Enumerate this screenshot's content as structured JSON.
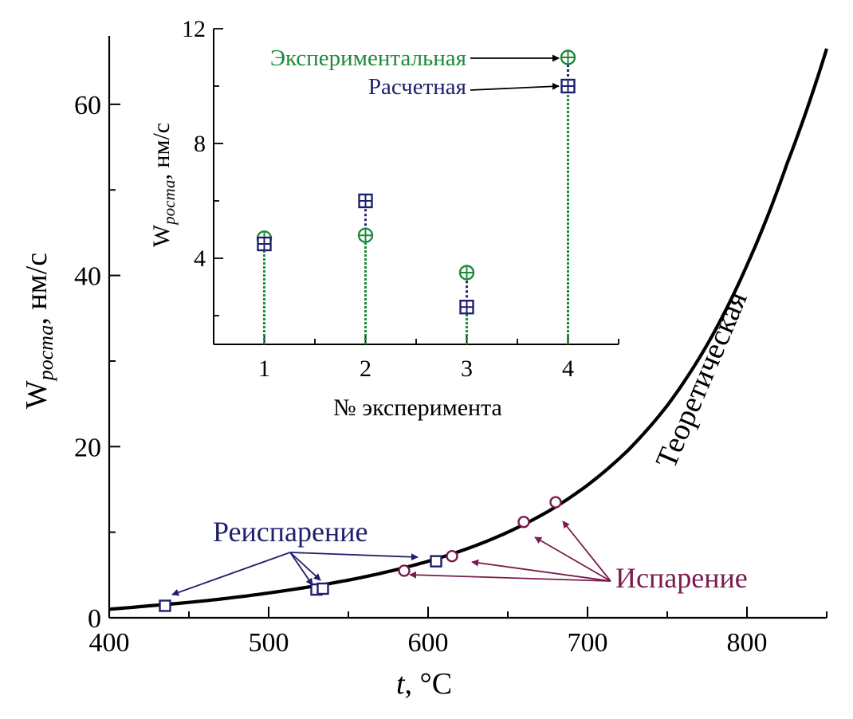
{
  "chart_data": [
    {
      "type": "line",
      "xlabel_var": "t",
      "xlabel_unit": ", °C",
      "ylabel_main": "W",
      "ylabel_sub": "роста",
      "ylabel_unit": ", нм/с",
      "xlim": [
        400,
        850
      ],
      "ylim": [
        0,
        68
      ],
      "xticks": [
        400,
        500,
        600,
        700,
        800
      ],
      "yticks": [
        0,
        20,
        40,
        60
      ],
      "grid": false,
      "curve": {
        "name": "Теоретическая",
        "color": "#000000",
        "x": [
          400,
          425,
          450,
          475,
          500,
          525,
          550,
          575,
          600,
          625,
          650,
          675,
          700,
          725,
          750,
          775,
          800,
          825,
          850
        ],
        "y": [
          1.0,
          1.4,
          1.8,
          2.3,
          2.9,
          3.6,
          4.4,
          5.4,
          6.6,
          8.1,
          10.0,
          12.4,
          15.5,
          19.5,
          24.8,
          31.9,
          41.2,
          53.0,
          66.5
        ]
      },
      "series": [
        {
          "name": "Реиспарение",
          "marker": "square",
          "color": "#1f1f6e",
          "x": [
            435,
            530,
            534,
            605
          ],
          "y": [
            1.4,
            3.3,
            3.4,
            6.6
          ]
        },
        {
          "name": "Испарение",
          "marker": "circle",
          "color": "#7a1a4e",
          "x": [
            585,
            615,
            660,
            680
          ],
          "y": [
            5.5,
            7.2,
            11.2,
            13.5
          ]
        }
      ],
      "annotations": [
        {
          "text": "Теоретическая",
          "color": "#000000"
        },
        {
          "text": "Реиспарение",
          "color": "#1f1f6e"
        },
        {
          "text": "Испарение",
          "color": "#7a1a4e"
        }
      ]
    },
    {
      "type": "scatter",
      "inset": true,
      "xlabel": "№ эксперимента",
      "ylabel_main": "W",
      "ylabel_sub": "роста",
      "ylabel_unit": ", нм/с",
      "xlim": [
        0.5,
        4.5
      ],
      "ylim": [
        1,
        12
      ],
      "xticks": [
        1,
        2,
        3,
        4
      ],
      "yticks": [
        4,
        8,
        12
      ],
      "grid": false,
      "series": [
        {
          "name": "Экспериментальная",
          "marker": "circle-plus",
          "color": "#1e8a3c",
          "x": [
            1,
            2,
            3,
            4
          ],
          "y": [
            4.7,
            4.8,
            3.5,
            11.0
          ]
        },
        {
          "name": "Расчетная",
          "marker": "square-plus",
          "color": "#1f1f6e",
          "x": [
            1,
            2,
            3,
            4
          ],
          "y": [
            4.5,
            6.0,
            2.3,
            10.0
          ]
        }
      ]
    }
  ]
}
